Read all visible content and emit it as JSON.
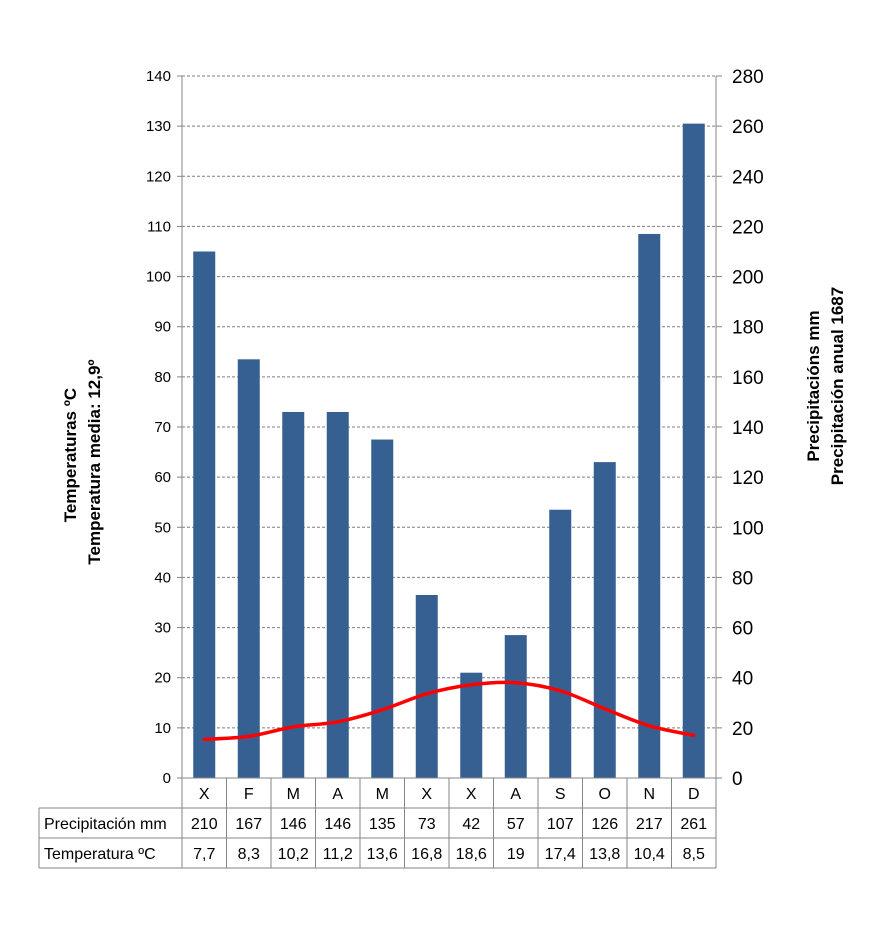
{
  "chart_data": {
    "type": "bar",
    "categories": [
      "X",
      "F",
      "M",
      "A",
      "M",
      "X",
      "X",
      "A",
      "S",
      "O",
      "N",
      "D"
    ],
    "series": [
      {
        "name": "Precipitación mm",
        "kind": "bar",
        "axis": "right",
        "color": "#376092",
        "values": [
          210,
          167,
          146,
          146,
          135,
          73,
          42,
          57,
          107,
          126,
          217,
          261
        ]
      },
      {
        "name": "Temperatura ºC",
        "kind": "line",
        "axis": "left",
        "color": "#ff0000",
        "values": [
          7.7,
          8.3,
          10.2,
          11.2,
          13.6,
          16.8,
          18.6,
          19,
          17.4,
          13.8,
          10.4,
          8.5
        ]
      }
    ],
    "table_values": {
      "precipitation": [
        "210",
        "167",
        "146",
        "146",
        "135",
        "73",
        "42",
        "57",
        "107",
        "126",
        "217",
        "261"
      ],
      "temperature": [
        "7,7",
        "8,3",
        "10,2",
        "11,2",
        "13,6",
        "16,8",
        "18,6",
        "19",
        "17,4",
        "13,8",
        "10,4",
        "8,5"
      ]
    },
    "y_left": {
      "label_line1": "Temperaturas ºC",
      "label_line2": "Temperatura media: 12,9º",
      "range": [
        0,
        140
      ],
      "step": 10
    },
    "y_right": {
      "label_line1": "Precipitacións mm",
      "label_line2": "Precipitación anual 1687",
      "range": [
        0,
        280
      ],
      "step": 20
    },
    "grid": true,
    "legend": "data-table-bottom"
  }
}
